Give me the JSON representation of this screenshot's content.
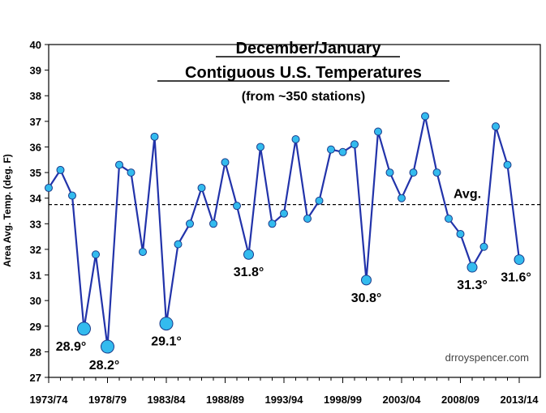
{
  "chart_data": {
    "type": "line",
    "title_line1": "December/January",
    "title_line2": "Contiguous U.S. Temperatures",
    "subtitle": "(from ~350 stations)",
    "ylabel": "Area Avg. Temp. (deg. F)",
    "xlabel": "",
    "ylim": [
      27,
      40
    ],
    "yticks": [
      27,
      28,
      29,
      30,
      31,
      32,
      33,
      34,
      35,
      36,
      37,
      38,
      39,
      40
    ],
    "xtick_labels": [
      "1973/74",
      "1978/79",
      "1983/84",
      "1988/89",
      "1993/94",
      "1998/99",
      "2003/04",
      "2008/09",
      "2013/14"
    ],
    "x": [
      "1973/74",
      "1974/75",
      "1975/76",
      "1976/77",
      "1977/78",
      "1978/79",
      "1979/80",
      "1980/81",
      "1981/82",
      "1982/83",
      "1983/84",
      "1984/85",
      "1985/86",
      "1986/87",
      "1987/88",
      "1988/89",
      "1989/90",
      "1990/91",
      "1991/92",
      "1992/93",
      "1993/94",
      "1994/95",
      "1995/96",
      "1996/97",
      "1997/98",
      "1998/99",
      "1999/00",
      "2000/01",
      "2001/02",
      "2002/03",
      "2003/04",
      "2004/05",
      "2005/06",
      "2006/07",
      "2007/08",
      "2008/09",
      "2009/10",
      "2010/11",
      "2011/12",
      "2012/13",
      "2013/14"
    ],
    "series": [
      {
        "name": "Dec/Jan average temperature",
        "color": "#2233aa",
        "marker_color": "#33bbee",
        "values": [
          34.4,
          35.1,
          34.1,
          28.9,
          31.8,
          28.2,
          35.3,
          35.0,
          31.9,
          36.4,
          29.1,
          32.2,
          33.0,
          34.4,
          33.0,
          35.4,
          33.7,
          31.8,
          36.0,
          33.0,
          33.4,
          36.3,
          33.2,
          33.9,
          35.9,
          35.8,
          36.1,
          30.8,
          36.6,
          35.0,
          34.0,
          35.0,
          37.2,
          35.0,
          33.2,
          32.6,
          31.3,
          32.1,
          36.8,
          35.3,
          31.6
        ]
      }
    ],
    "average": {
      "value": 33.75,
      "label": "Avg."
    },
    "annotations": [
      {
        "index": 3,
        "text": "28.9°"
      },
      {
        "index": 5,
        "text": "28.2°"
      },
      {
        "index": 10,
        "text": "29.1°"
      },
      {
        "index": 17,
        "text": "31.8°"
      },
      {
        "index": 27,
        "text": "30.8°"
      },
      {
        "index": 36,
        "text": "31.3°"
      },
      {
        "index": 40,
        "text": "31.6°"
      }
    ],
    "credit": "drroyspencer.com",
    "grid": false,
    "legend": "none"
  }
}
